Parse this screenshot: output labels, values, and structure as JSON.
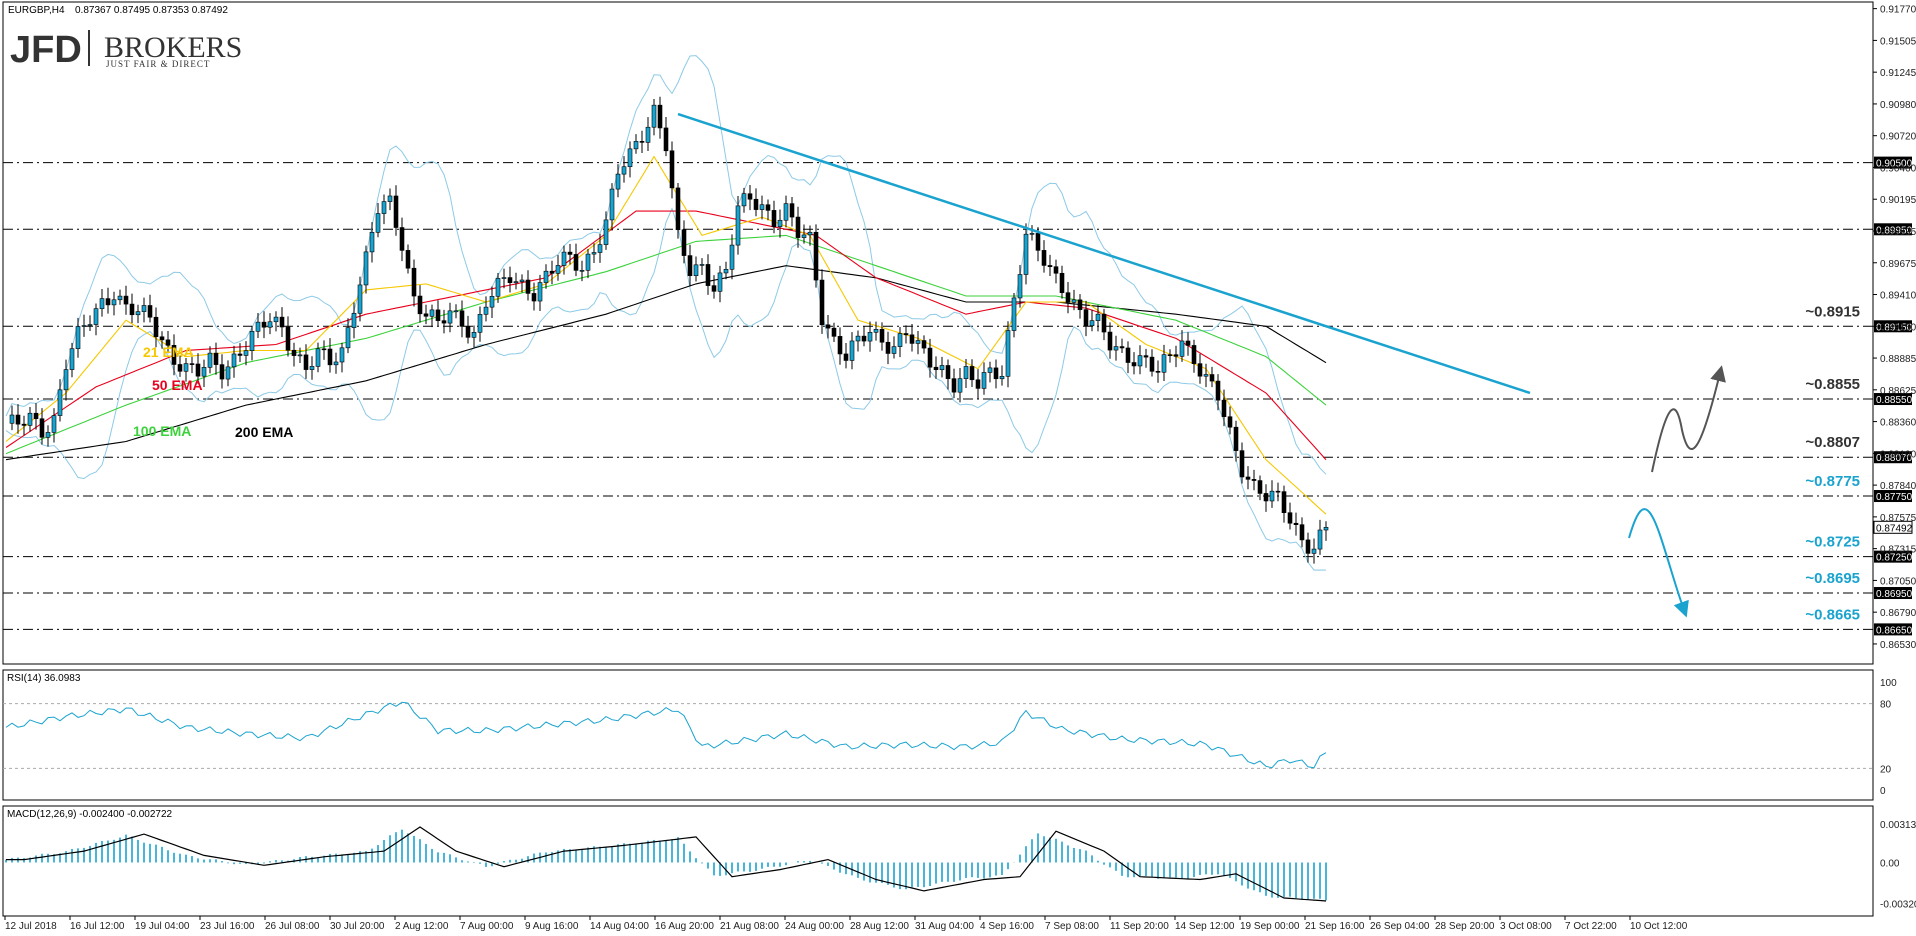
{
  "header": {
    "symbol": "EURGBP,H4",
    "ohlc": "0.87367 0.87495 0.87353 0.87492"
  },
  "logo": {
    "main": "JFD",
    "brand": "BROKERS",
    "tagline": "JUST FAIR & DIRECT"
  },
  "rsi": {
    "label": "RSI(14) 36.0983",
    "ticks": [
      "100",
      "80",
      "20",
      "0"
    ]
  },
  "macd": {
    "label": "MACD(12,26,9) -0.002400 -0.002722",
    "ticks": [
      "0.003133",
      "0.00",
      "-0.003206"
    ]
  },
  "chart_data": {
    "type": "candlestick",
    "price_ticks": [
      "0.91770",
      "0.91505",
      "0.91245",
      "0.90980",
      "0.90720",
      "0.90460",
      "0.90195",
      "0.89935",
      "0.89675",
      "0.89410",
      "0.89150",
      "0.88885",
      "0.88625",
      "0.88360",
      "0.88100",
      "0.87840",
      "0.87575",
      "0.87315",
      "0.87050",
      "0.86790",
      "0.86530"
    ],
    "ylim": [
      0.8648,
      0.918
    ],
    "time_labels": [
      "12 Jul 2018",
      "16 Jul 12:00",
      "19 Jul 04:00",
      "23 Jul 16:00",
      "26 Jul 08:00",
      "30 Jul 20:00",
      "2 Aug 12:00",
      "7 Aug 00:00",
      "9 Aug 16:00",
      "14 Aug 04:00",
      "16 Aug 20:00",
      "21 Aug 08:00",
      "24 Aug 00:00",
      "28 Aug 12:00",
      "31 Aug 04:00",
      "4 Sep 16:00",
      "7 Sep 08:00",
      "11 Sep 20:00",
      "14 Sep 12:00",
      "19 Sep 00:00",
      "21 Sep 16:00",
      "26 Sep 04:00",
      "28 Sep 20:00",
      "3 Oct 08:00",
      "7 Oct 22:00",
      "10 Oct 12:00"
    ],
    "ema_labels": [
      {
        "text": "21 EMA",
        "color": "#f5c800"
      },
      {
        "text": "50 EMA",
        "color": "#e8001c"
      },
      {
        "text": "100 EMA",
        "color": "#3cd23c"
      },
      {
        "text": "200 EMA",
        "color": "#000000"
      }
    ],
    "levels": [
      {
        "value": 0.905,
        "tag": "0.90500"
      },
      {
        "value": 0.8995,
        "tag": "0.89950"
      },
      {
        "value": 0.8915,
        "tag": "0.89150",
        "label": "~0.8915",
        "label_color": "#333333"
      },
      {
        "value": 0.8855,
        "tag": "0.88550",
        "label": "~0.8855",
        "label_color": "#333333"
      },
      {
        "value": 0.8807,
        "tag": "0.88070",
        "label": "~0.8807",
        "label_color": "#333333"
      },
      {
        "value": 0.8775,
        "tag": "0.87750",
        "label": "~0.8775",
        "label_color": "#1aa3cf"
      },
      {
        "value": 0.8725,
        "tag": "0.87250",
        "label": "~0.8725",
        "label_color": "#1aa3cf"
      },
      {
        "value": 0.8695,
        "tag": "0.86950",
        "label": "~0.8695",
        "label_color": "#1aa3cf"
      },
      {
        "value": 0.8665,
        "tag": "0.86650",
        "label": "~0.8665",
        "label_color": "#1aa3cf"
      }
    ],
    "current_price": {
      "value": 0.87492,
      "tag": "0.87492"
    },
    "close_path": [
      [
        0,
        0.8835
      ],
      [
        2,
        0.8832
      ],
      [
        4,
        0.8838
      ],
      [
        6,
        0.883
      ],
      [
        8,
        0.884
      ],
      [
        10,
        0.8885
      ],
      [
        12,
        0.8905
      ],
      [
        14,
        0.892
      ],
      [
        16,
        0.8935
      ],
      [
        18,
        0.8945
      ],
      [
        20,
        0.893
      ],
      [
        22,
        0.8925
      ],
      [
        24,
        0.892
      ],
      [
        26,
        0.8905
      ],
      [
        28,
        0.889
      ],
      [
        30,
        0.888
      ],
      [
        32,
        0.8875
      ],
      [
        34,
        0.8885
      ],
      [
        36,
        0.888
      ],
      [
        38,
        0.889
      ],
      [
        40,
        0.89
      ],
      [
        42,
        0.891
      ],
      [
        44,
        0.892
      ],
      [
        46,
        0.8915
      ],
      [
        48,
        0.8895
      ],
      [
        50,
        0.888
      ],
      [
        52,
        0.889
      ],
      [
        54,
        0.8885
      ],
      [
        56,
        0.8895
      ],
      [
        58,
        0.8935
      ],
      [
        60,
        0.897
      ],
      [
        62,
        0.901
      ],
      [
        64,
        0.9015
      ],
      [
        66,
        0.8985
      ],
      [
        68,
        0.894
      ],
      [
        70,
        0.8925
      ],
      [
        72,
        0.8915
      ],
      [
        74,
        0.8925
      ],
      [
        76,
        0.892
      ],
      [
        78,
        0.891
      ],
      [
        80,
        0.8935
      ],
      [
        82,
        0.8945
      ],
      [
        84,
        0.8955
      ],
      [
        86,
        0.895
      ],
      [
        88,
        0.8945
      ],
      [
        90,
        0.8955
      ],
      [
        92,
        0.8965
      ],
      [
        94,
        0.897
      ],
      [
        96,
        0.8965
      ],
      [
        98,
        0.898
      ],
      [
        100,
        0.9
      ],
      [
        102,
        0.904
      ],
      [
        104,
        0.9055
      ],
      [
        106,
        0.9075
      ],
      [
        108,
        0.9095
      ],
      [
        110,
        0.9065
      ],
      [
        112,
        0.8985
      ],
      [
        114,
        0.896
      ],
      [
        116,
        0.8965
      ],
      [
        118,
        0.895
      ],
      [
        120,
        0.896
      ],
      [
        122,
        0.901
      ],
      [
        124,
        0.902
      ],
      [
        126,
        0.9015
      ],
      [
        128,
        0.9005
      ],
      [
        130,
        0.901
      ],
      [
        132,
        0.899
      ],
      [
        134,
        0.8985
      ],
      [
        136,
        0.8925
      ],
      [
        138,
        0.8905
      ],
      [
        140,
        0.889
      ],
      [
        142,
        0.89
      ],
      [
        144,
        0.891
      ],
      [
        146,
        0.8905
      ],
      [
        148,
        0.89
      ],
      [
        150,
        0.891
      ],
      [
        152,
        0.8895
      ],
      [
        154,
        0.8885
      ],
      [
        156,
        0.888
      ],
      [
        158,
        0.887
      ],
      [
        160,
        0.8875
      ],
      [
        162,
        0.8865
      ],
      [
        164,
        0.8875
      ],
      [
        166,
        0.888
      ],
      [
        168,
        0.894
      ],
      [
        170,
        0.899
      ],
      [
        172,
        0.8975
      ],
      [
        174,
        0.896
      ],
      [
        176,
        0.895
      ],
      [
        178,
        0.8935
      ],
      [
        180,
        0.892
      ],
      [
        182,
        0.8915
      ],
      [
        184,
        0.89
      ],
      [
        186,
        0.8895
      ],
      [
        188,
        0.889
      ],
      [
        190,
        0.8885
      ],
      [
        192,
        0.8875
      ],
      [
        194,
        0.889
      ],
      [
        196,
        0.8905
      ],
      [
        198,
        0.889
      ],
      [
        200,
        0.887
      ],
      [
        202,
        0.8855
      ],
      [
        204,
        0.8825
      ],
      [
        206,
        0.88
      ],
      [
        208,
        0.8785
      ],
      [
        210,
        0.8775
      ],
      [
        212,
        0.877
      ],
      [
        214,
        0.8755
      ],
      [
        216,
        0.874
      ],
      [
        218,
        0.8735
      ],
      [
        220,
        0.8749
      ]
    ],
    "ema21_path": [
      [
        0,
        0.882
      ],
      [
        10,
        0.886
      ],
      [
        20,
        0.892
      ],
      [
        30,
        0.889
      ],
      [
        40,
        0.8895
      ],
      [
        50,
        0.8895
      ],
      [
        60,
        0.8945
      ],
      [
        70,
        0.895
      ],
      [
        80,
        0.8935
      ],
      [
        90,
        0.895
      ],
      [
        100,
        0.899
      ],
      [
        108,
        0.9055
      ],
      [
        116,
        0.899
      ],
      [
        126,
        0.9005
      ],
      [
        134,
        0.899
      ],
      [
        142,
        0.892
      ],
      [
        152,
        0.8905
      ],
      [
        162,
        0.888
      ],
      [
        170,
        0.8935
      ],
      [
        180,
        0.8935
      ],
      [
        190,
        0.89
      ],
      [
        200,
        0.888
      ],
      [
        210,
        0.8805
      ],
      [
        220,
        0.876
      ]
    ],
    "ema50_path": [
      [
        0,
        0.8815
      ],
      [
        15,
        0.8865
      ],
      [
        30,
        0.8895
      ],
      [
        45,
        0.89
      ],
      [
        60,
        0.8925
      ],
      [
        75,
        0.894
      ],
      [
        90,
        0.8955
      ],
      [
        105,
        0.901
      ],
      [
        115,
        0.901
      ],
      [
        125,
        0.9
      ],
      [
        135,
        0.899
      ],
      [
        145,
        0.8955
      ],
      [
        160,
        0.8925
      ],
      [
        170,
        0.8935
      ],
      [
        180,
        0.893
      ],
      [
        195,
        0.8905
      ],
      [
        210,
        0.886
      ],
      [
        220,
        0.8805
      ]
    ],
    "ema100_path": [
      [
        0,
        0.881
      ],
      [
        20,
        0.885
      ],
      [
        40,
        0.8885
      ],
      [
        60,
        0.8905
      ],
      [
        80,
        0.8935
      ],
      [
        100,
        0.896
      ],
      [
        115,
        0.8985
      ],
      [
        130,
        0.899
      ],
      [
        145,
        0.8965
      ],
      [
        160,
        0.894
      ],
      [
        175,
        0.894
      ],
      [
        195,
        0.892
      ],
      [
        210,
        0.889
      ],
      [
        220,
        0.885
      ]
    ],
    "ema200_path": [
      [
        0,
        0.8805
      ],
      [
        20,
        0.882
      ],
      [
        40,
        0.885
      ],
      [
        60,
        0.887
      ],
      [
        80,
        0.89
      ],
      [
        100,
        0.8925
      ],
      [
        115,
        0.895
      ],
      [
        130,
        0.8965
      ],
      [
        145,
        0.8955
      ],
      [
        160,
        0.8935
      ],
      [
        175,
        0.8935
      ],
      [
        195,
        0.8925
      ],
      [
        210,
        0.8915
      ],
      [
        220,
        0.8885
      ]
    ],
    "trendline": [
      [
        112,
        0.909
      ],
      [
        254,
        0.886
      ]
    ],
    "rsi_path": [
      [
        0,
        58
      ],
      [
        10,
        68
      ],
      [
        20,
        75
      ],
      [
        30,
        58
      ],
      [
        40,
        52
      ],
      [
        50,
        48
      ],
      [
        60,
        70
      ],
      [
        66,
        82
      ],
      [
        72,
        55
      ],
      [
        80,
        55
      ],
      [
        90,
        60
      ],
      [
        100,
        65
      ],
      [
        112,
        75
      ],
      [
        116,
        40
      ],
      [
        122,
        45
      ],
      [
        130,
        52
      ],
      [
        140,
        40
      ],
      [
        150,
        42
      ],
      [
        160,
        40
      ],
      [
        166,
        44
      ],
      [
        170,
        72
      ],
      [
        176,
        56
      ],
      [
        186,
        47
      ],
      [
        196,
        44
      ],
      [
        200,
        42
      ],
      [
        206,
        30
      ],
      [
        210,
        22
      ],
      [
        214,
        28
      ],
      [
        218,
        22
      ],
      [
        220,
        35
      ]
    ],
    "macd_path": [
      [
        0,
        0.0002
      ],
      [
        10,
        0.0008
      ],
      [
        20,
        0.002
      ],
      [
        30,
        0.0005
      ],
      [
        40,
        -0.0002
      ],
      [
        50,
        0.0004
      ],
      [
        60,
        0.0008
      ],
      [
        66,
        0.0025
      ],
      [
        72,
        0.0008
      ],
      [
        80,
        -0.0003
      ],
      [
        90,
        0.0008
      ],
      [
        100,
        0.0012
      ],
      [
        112,
        0.0018
      ],
      [
        118,
        -0.001
      ],
      [
        126,
        -0.0005
      ],
      [
        134,
        0.0002
      ],
      [
        142,
        -0.0012
      ],
      [
        150,
        -0.002
      ],
      [
        160,
        -0.0012
      ],
      [
        166,
        -0.001
      ],
      [
        172,
        0.0022
      ],
      [
        180,
        0.0008
      ],
      [
        186,
        -0.001
      ],
      [
        196,
        -0.0012
      ],
      [
        202,
        -0.0008
      ],
      [
        210,
        -0.0025
      ],
      [
        220,
        -0.0028
      ]
    ]
  }
}
